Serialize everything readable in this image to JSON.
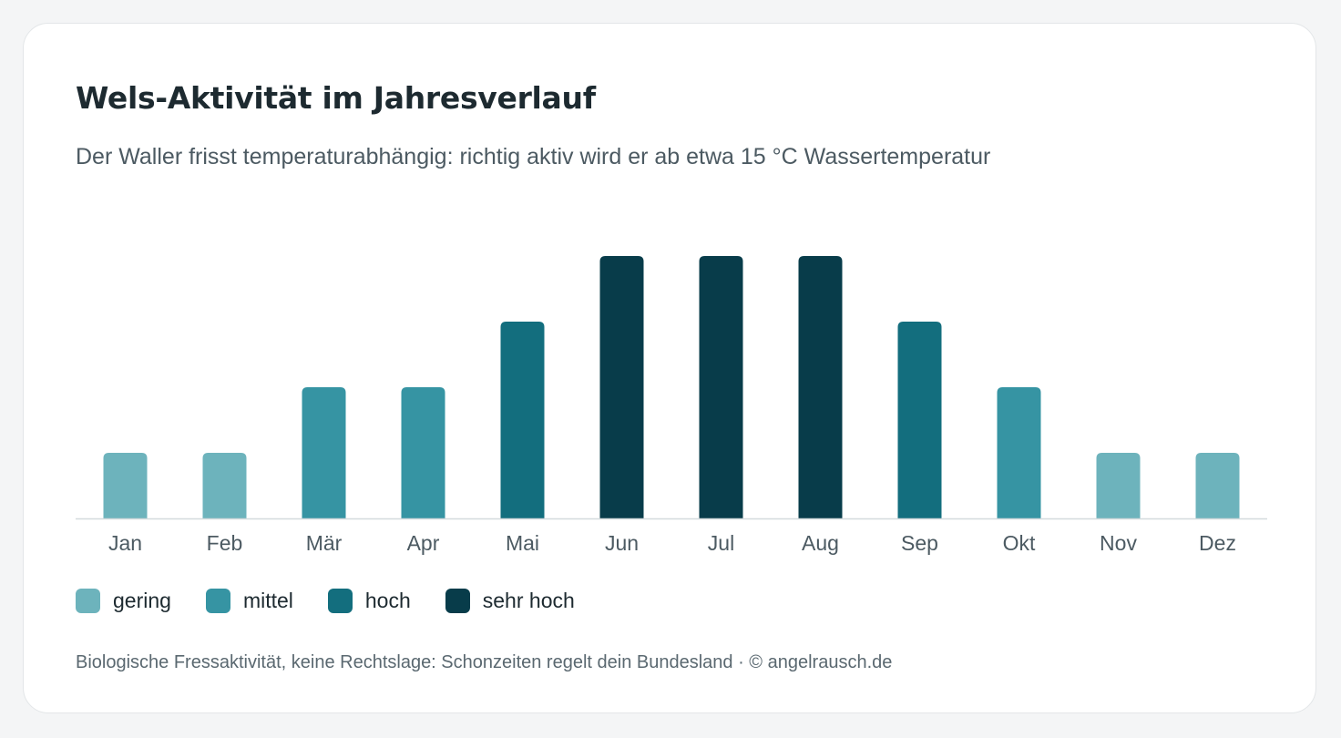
{
  "card": {
    "title": "Wels-Aktivität im Jahresverlauf",
    "subtitle": "Der Waller frisst temperaturabhängig: richtig aktiv wird er ab etwa 15 °C Wassertemperatur",
    "footnote": "Biologische Fressaktivität, keine Rechtslage: Schonzeiten regelt dein Bundesland · © angelrausch.de"
  },
  "legend": [
    {
      "label": "gering",
      "level": 1,
      "color": "#6db3bc"
    },
    {
      "label": "mittel",
      "level": 2,
      "color": "#3694a3"
    },
    {
      "label": "hoch",
      "level": 3,
      "color": "#136e7e"
    },
    {
      "label": "sehr hoch",
      "level": 4,
      "color": "#083c4a"
    }
  ],
  "chart_data": {
    "type": "bar",
    "title": "Wels-Aktivität im Jahresverlauf",
    "subtitle": "Der Waller frisst temperaturabhängig: richtig aktiv wird er ab etwa 15 °C Wassertemperatur",
    "categories": [
      "Jan",
      "Feb",
      "Mär",
      "Apr",
      "Mai",
      "Jun",
      "Jul",
      "Aug",
      "Sep",
      "Okt",
      "Nov",
      "Dez"
    ],
    "values": [
      1,
      1,
      2,
      2,
      3,
      4,
      4,
      4,
      3,
      2,
      1,
      1
    ],
    "value_labels": [
      "gering",
      "gering",
      "mittel",
      "mittel",
      "hoch",
      "sehr hoch",
      "sehr hoch",
      "sehr hoch",
      "hoch",
      "mittel",
      "gering",
      "gering"
    ],
    "ylim": [
      0,
      4
    ],
    "xlabel": "",
    "ylabel": "",
    "grid": false,
    "legend_position": "bottom-left"
  }
}
